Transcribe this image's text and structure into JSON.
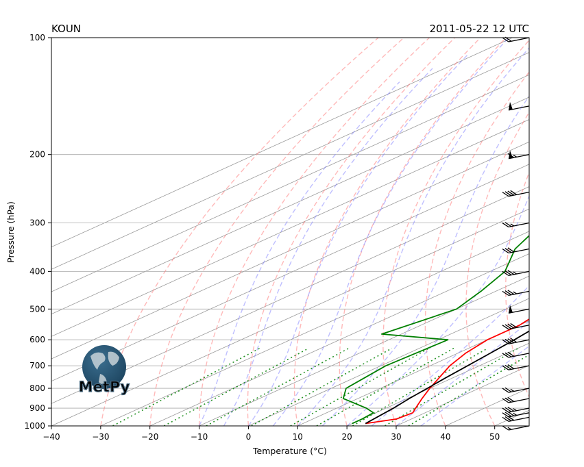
{
  "chart_data": {
    "type": "line",
    "subtype": "skew-t log-p",
    "title_left": "KOUN",
    "title_right": "2011-05-22 12 UTC",
    "xlabel": "Temperature (°C)",
    "ylabel": "Pressure (hPa)",
    "xlim": [
      -40,
      57
    ],
    "ylim": [
      1000,
      100
    ],
    "y_scale": "log",
    "x_ticks": [
      "−40",
      "−30",
      "−20",
      "−10",
      "0",
      "10",
      "20",
      "30",
      "40",
      "50"
    ],
    "x_tick_values": [
      -40,
      -30,
      -20,
      -10,
      0,
      10,
      20,
      30,
      40,
      50
    ],
    "y_ticks": [
      "100",
      "200",
      "300",
      "400",
      "500",
      "600",
      "700",
      "800",
      "900",
      "1000"
    ],
    "y_tick_values": [
      100,
      200,
      300,
      400,
      500,
      600,
      700,
      800,
      900,
      1000
    ],
    "grid": true,
    "colors": {
      "temperature": "#ff0000",
      "dewpoint": "#008000",
      "parcel": "#000000",
      "dry_adiabats": "#ff8080",
      "moist_adiabats": "#8080ff",
      "mixing_ratio": "#008000",
      "isotherms": "#888888"
    },
    "series": [
      {
        "key": "temperature",
        "points": [
          [
            986,
            22.7
          ],
          [
            960,
            27
          ],
          [
            925,
            27.5
          ],
          [
            900,
            26
          ],
          [
            850,
            23
          ],
          [
            800,
            20
          ],
          [
            700,
            14
          ],
          [
            650,
            11.6
          ],
          [
            600,
            10
          ],
          [
            550,
            10
          ],
          [
            500,
            8
          ],
          [
            450,
            4.5
          ],
          [
            400,
            0
          ],
          [
            350,
            -6
          ],
          [
            300,
            -13
          ],
          [
            250,
            -18
          ],
          [
            200,
            -30
          ],
          [
            175,
            -33
          ],
          [
            150,
            -40
          ],
          [
            130,
            -44
          ],
          [
            115,
            -51
          ],
          [
            100,
            -57
          ]
        ]
      },
      {
        "key": "dewpoint",
        "points": [
          [
            986,
            20
          ],
          [
            960,
            20
          ],
          [
            925,
            19.5
          ],
          [
            900,
            16
          ],
          [
            850,
            7
          ],
          [
            800,
            3
          ],
          [
            700,
            1
          ],
          [
            600,
            2
          ],
          [
            580,
            -14
          ],
          [
            500,
            -10
          ],
          [
            450,
            -13
          ],
          [
            400,
            -17
          ],
          [
            350,
            -25
          ],
          [
            300,
            -31
          ],
          [
            250,
            -44
          ],
          [
            200,
            -49
          ],
          [
            175,
            -55
          ],
          [
            150,
            -63
          ],
          [
            130,
            -67
          ],
          [
            115,
            -70
          ],
          [
            100,
            -75
          ]
        ]
      },
      {
        "key": "parcel",
        "points": [
          [
            986,
            22.7
          ],
          [
            950,
            22.2
          ],
          [
            900,
            21.5
          ],
          [
            850,
            20.4
          ],
          [
            800,
            19.5
          ],
          [
            750,
            18.5
          ],
          [
            700,
            17.6
          ],
          [
            650,
            16.6
          ],
          [
            600,
            15.5
          ],
          [
            550,
            14
          ],
          [
            500,
            12.2
          ],
          [
            450,
            10
          ],
          [
            400,
            6.5
          ],
          [
            350,
            2.6
          ],
          [
            300,
            -3
          ],
          [
            250,
            -12
          ],
          [
            225,
            -18
          ],
          [
            200,
            -24
          ],
          [
            175,
            -33
          ],
          [
            150,
            -43
          ],
          [
            125,
            -56
          ],
          [
            100,
            -72
          ]
        ]
      }
    ],
    "wind_barbs": [
      {
        "p": 1000,
        "kt": 15
      },
      {
        "p": 950,
        "kt": 30
      },
      {
        "p": 925,
        "kt": 35
      },
      {
        "p": 900,
        "kt": 35
      },
      {
        "p": 850,
        "kt": 30
      },
      {
        "p": 800,
        "kt": 25
      },
      {
        "p": 700,
        "kt": 30
      },
      {
        "p": 650,
        "kt": 30
      },
      {
        "p": 600,
        "kt": 40
      },
      {
        "p": 550,
        "kt": 40
      },
      {
        "p": 500,
        "kt": 50
      },
      {
        "p": 450,
        "kt": 35
      },
      {
        "p": 400,
        "kt": 35
      },
      {
        "p": 350,
        "kt": 30
      },
      {
        "p": 300,
        "kt": 25
      },
      {
        "p": 250,
        "kt": 40
      },
      {
        "p": 200,
        "kt": 65
      },
      {
        "p": 150,
        "kt": 50
      },
      {
        "p": 100,
        "kt": 20
      }
    ]
  },
  "logo": {
    "text": "MetPy"
  }
}
